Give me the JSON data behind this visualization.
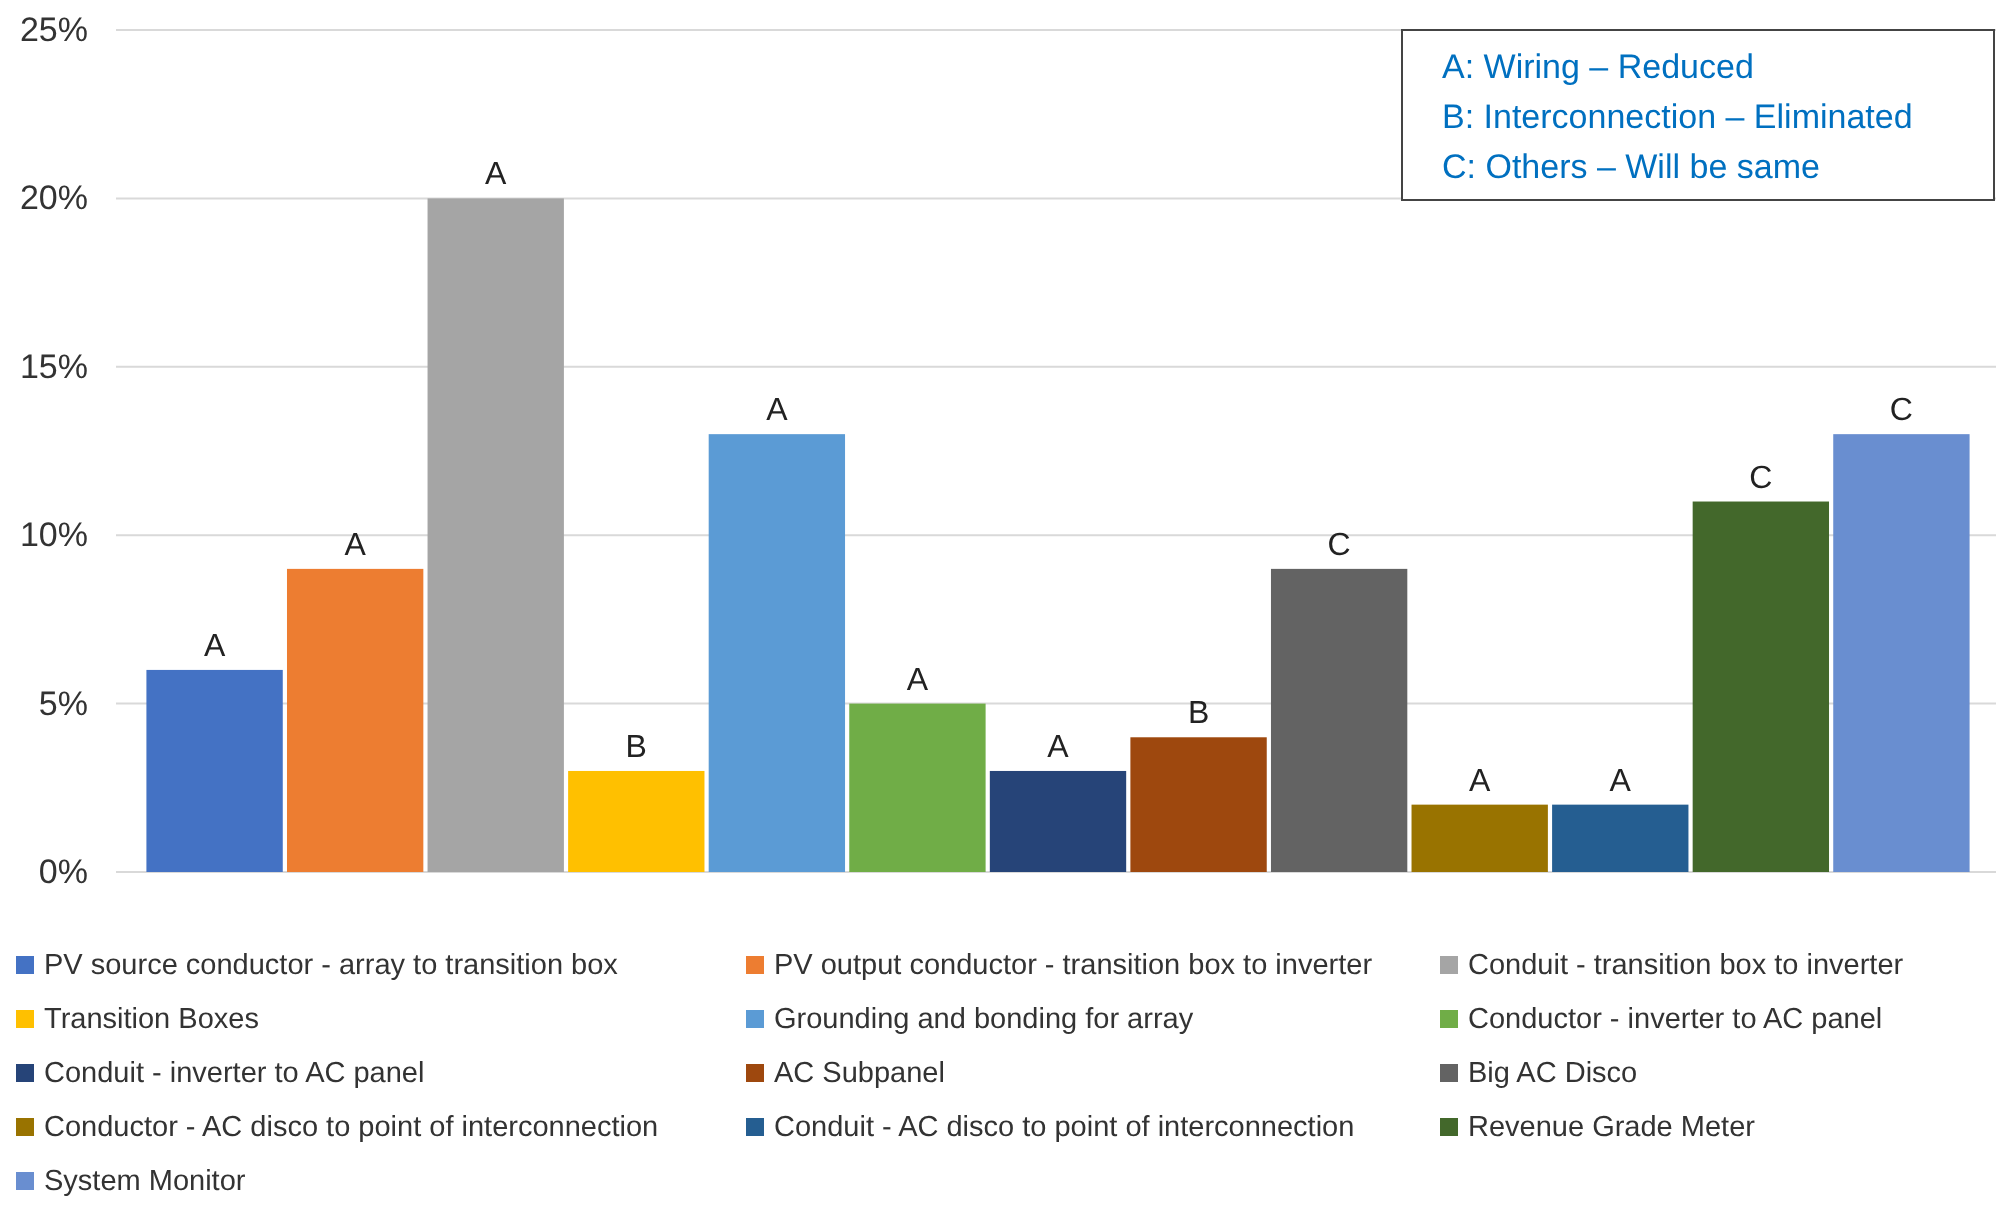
{
  "chart_data": {
    "type": "bar",
    "categories": [
      null
    ],
    "series": [
      {
        "name": "PV source conductor - array to transition box",
        "color": "#4472c4",
        "values": [
          6
        ],
        "value_labels": [
          "A"
        ]
      },
      {
        "name": "PV output conductor - transition box to inverter",
        "color": "#ed7d31",
        "values": [
          9
        ],
        "value_labels": [
          "A"
        ]
      },
      {
        "name": "Conduit - transition box to inverter",
        "color": "#a5a5a5",
        "values": [
          20
        ],
        "value_labels": [
          "A"
        ]
      },
      {
        "name": "Transition Boxes",
        "color": "#ffc000",
        "values": [
          3
        ],
        "value_labels": [
          "B"
        ]
      },
      {
        "name": "Grounding and bonding for array",
        "color": "#5b9bd5",
        "values": [
          13
        ],
        "value_labels": [
          "A"
        ]
      },
      {
        "name": "Conductor - inverter to AC panel",
        "color": "#70ad47",
        "values": [
          5
        ],
        "value_labels": [
          "A"
        ]
      },
      {
        "name": "Conduit - inverter to AC panel",
        "color": "#264478",
        "values": [
          3
        ],
        "value_labels": [
          "A"
        ]
      },
      {
        "name": "AC Subpanel",
        "color": "#9e480e",
        "values": [
          4
        ],
        "value_labels": [
          "B"
        ]
      },
      {
        "name": "Big AC Disco",
        "color": "#636363",
        "values": [
          9
        ],
        "value_labels": [
          "C"
        ]
      },
      {
        "name": "Conductor - AC disco to point of interconnection",
        "color": "#997300",
        "values": [
          2
        ],
        "value_labels": [
          "A"
        ]
      },
      {
        "name": "Conduit - AC disco to point of interconnection",
        "color": "#255e91",
        "values": [
          2
        ],
        "value_labels": [
          "A"
        ]
      },
      {
        "name": "Revenue Grade Meter",
        "color": "#43682b",
        "values": [
          11
        ],
        "value_labels": [
          "C"
        ]
      },
      {
        "name": "System Monitor",
        "color": "#698ed0",
        "values": [
          13
        ],
        "value_labels": [
          "C"
        ]
      }
    ],
    "ylim": [
      0,
      25
    ],
    "yticks": [
      {
        "value": 0,
        "label": "0%"
      },
      {
        "value": 5,
        "label": "5%"
      },
      {
        "value": 10,
        "label": "10%"
      },
      {
        "value": 15,
        "label": "15%"
      },
      {
        "value": 20,
        "label": "20%"
      },
      {
        "value": 25,
        "label": "25%"
      }
    ],
    "grid": "y",
    "legend": "bottom",
    "annotations": [
      "A: Wiring – Reduced",
      "B: Interconnection – Eliminated",
      "C: Others – Will be same"
    ]
  }
}
